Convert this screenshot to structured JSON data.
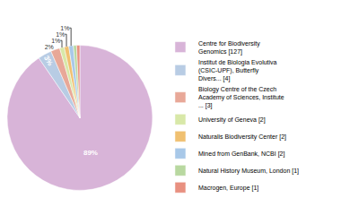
{
  "chart_data": {
    "type": "pie",
    "categories": [
      "Centre for Biodiversity\nGenomics [127]",
      "Institut de Biologia Evolutiva\n(CSIC-UPF), Butterfly\nDivers... [4]",
      "Biology Centre of the Czech\nAcademy of Sciences, Institute\n... [3]",
      "University of Geneva [2]",
      "Naturalis Biodiversity Center [2]",
      "Mined from GenBank, NCBI [2]",
      "Natural History Museum, London [1]",
      "Macrogen, Europe [1]"
    ],
    "values": [
      89,
      3,
      2,
      1,
      1,
      1,
      0.7,
      0.7
    ],
    "value_labels": [
      "89%",
      "3%",
      "2%",
      "1%",
      "1%",
      "1%",
      null,
      null
    ],
    "colors": [
      "#d8b4d8",
      "#b8cce4",
      "#e8a898",
      "#d8e8a8",
      "#f0c070",
      "#a8c8e8",
      "#b8d8a0",
      "#e89080"
    ],
    "data_labels": true,
    "legend": "right"
  }
}
